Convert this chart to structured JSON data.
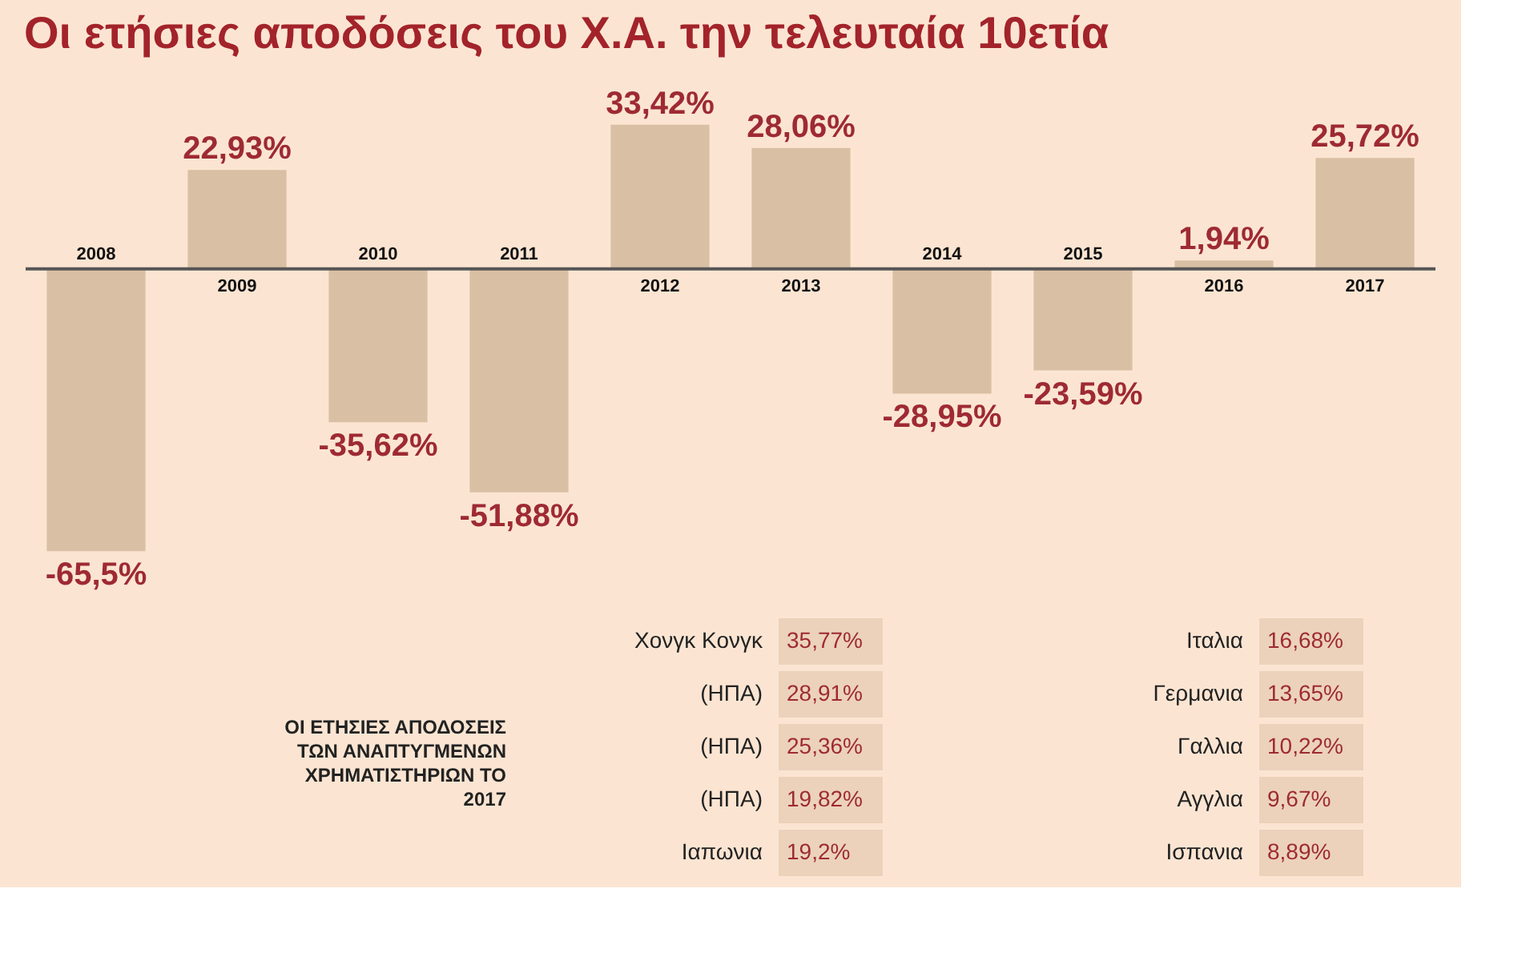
{
  "chart_data": [
    {
      "type": "bar",
      "title": "Οι ετήσιες αποδόσεις του Χ.Α. την τελευταία 10ετία",
      "categories": [
        "2008",
        "2009",
        "2010",
        "2011",
        "2012",
        "2013",
        "2014",
        "2015",
        "2016",
        "2017"
      ],
      "values": [
        -65.5,
        22.93,
        -35.62,
        -51.88,
        33.42,
        28.06,
        -28.95,
        -23.59,
        1.94,
        25.72
      ],
      "value_labels": [
        "-65,5%",
        "22,93%",
        "-35,62%",
        "-51,88%",
        "33,42%",
        "28,06%",
        "-28,95%",
        "-23,59%",
        "1,94%",
        "25,72%"
      ],
      "color": "#d9bfa4"
    },
    {
      "type": "other",
      "title": "ΟΙ ΕΤΗΣΙΕΣ ΑΠΟΔΟΣΕΙΣ ΤΩΝ ΑΝΑΠΤΥΓΜΕΝΩΝ ΧΡΗΜΑΤΙΣΤΗΡΙΩΝ ΤΟ 2017",
      "categories": [
        "Χονγκ Κονγκ",
        "(ΗΠΑ)",
        "(ΗΠΑ)",
        "(ΗΠΑ)",
        "Ιαπωνια",
        "Ιταλια",
        "Γερμανια",
        "Γαλλια",
        "Αγγλια",
        "Ισπανια"
      ],
      "values": [
        35.77,
        28.91,
        25.36,
        19.82,
        19.2,
        16.68,
        13.65,
        10.22,
        9.67,
        8.89
      ],
      "value_labels": [
        "35,77%",
        "28,91%",
        "25,36%",
        "19,82%",
        "19,2%",
        "16,68%",
        "13,65%",
        "10,22%",
        "9,67%",
        "8,89%"
      ]
    }
  ]
}
